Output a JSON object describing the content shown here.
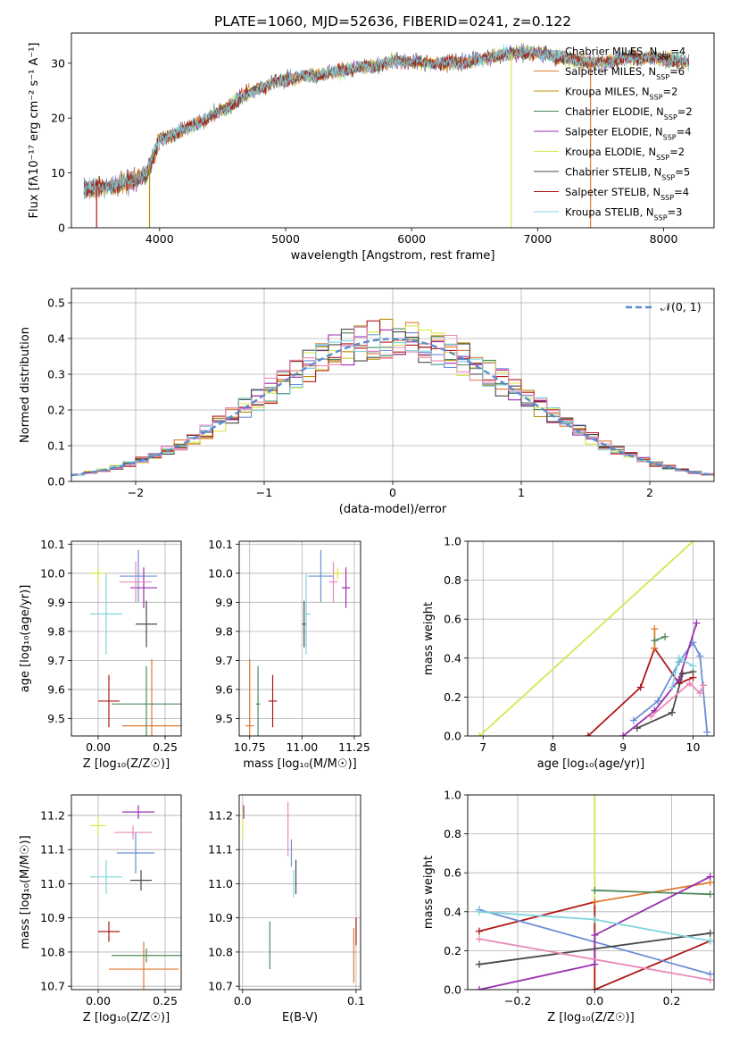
{
  "figure": {
    "title": "PLATE=1060, MJD=52636, FIBERID=0241, z=0.122"
  },
  "colors": {
    "Chabrier MILES": "#6a8fd6",
    "Salpeter MILES": "#e07a30",
    "Kroupa MILES": "#b8900a",
    "Chabrier ELODIE": "#4f8a5c",
    "Salpeter ELODIE": "#9a2fb0",
    "Kroupa ELODIE": "#d8e84a",
    "Chabrier STELIB": "#4a4a4a",
    "Salpeter STELIB": "#b01818",
    "Kroupa STELIB": "#80d4dc",
    "pink": "#e98ab8",
    "lime": "#c8ec50",
    "normal": "#5b8bd0"
  },
  "chart_data": [
    {
      "id": "spectrum",
      "type": "line",
      "title": "PLATE=1060, MJD=52636, FIBERID=0241, z=0.122",
      "xlabel": "wavelength [Angstrom, rest frame]",
      "ylabel": "Flux [fλ10⁻¹⁷ erg cm⁻² s⁻¹ A⁻¹]",
      "xlim": [
        3300,
        8400
      ],
      "ylim": [
        0,
        35.5
      ],
      "xticks": [
        4000,
        5000,
        6000,
        7000,
        8000
      ],
      "yticks": [
        0,
        10,
        20,
        30
      ],
      "legend_position": "upper-right",
      "continuum": {
        "x": [
          3400,
          3600,
          3800,
          3900,
          4000,
          4150,
          4300,
          4500,
          4700,
          4900,
          5100,
          5300,
          5500,
          5700,
          5900,
          6100,
          6300,
          6500,
          6700,
          6900,
          7100,
          7300,
          7500,
          7700,
          7900,
          8100,
          8200
        ],
        "y": [
          7.0,
          7.5,
          8.5,
          10.0,
          16.0,
          17.5,
          19.0,
          21.5,
          24.5,
          26.5,
          27.5,
          28.0,
          29.0,
          29.5,
          30.5,
          30.0,
          30.0,
          30.5,
          31.5,
          32.0,
          31.5,
          30.5,
          30.0,
          31.0,
          31.0,
          30.5,
          30.0
        ]
      },
      "series": [
        {
          "name": "Chabrier MILES, N_SSP=4",
          "label": "Chabrier MILES, N",
          "sub": "SSP",
          "suffix": "=4",
          "color": "#6a8fd6"
        },
        {
          "name": "Salpeter MILES, N_SSP=6",
          "label": "Salpeter MILES, N",
          "sub": "SSP",
          "suffix": "=6",
          "color": "#e07a30"
        },
        {
          "name": "Kroupa MILES, N_SSP=2",
          "label": "Kroupa MILES, N",
          "sub": "SSP",
          "suffix": "=2",
          "color": "#b8900a"
        },
        {
          "name": "Chabrier ELODIE, N_SSP=2",
          "label": "Chabrier ELODIE, N",
          "sub": "SSP",
          "suffix": "=2",
          "color": "#4f8a5c"
        },
        {
          "name": "Salpeter ELODIE, N_SSP=4",
          "label": "Salpeter ELODIE, N",
          "sub": "SSP",
          "suffix": "=4",
          "color": "#9a2fb0"
        },
        {
          "name": "Kroupa ELODIE, N_SSP=2",
          "label": "Kroupa ELODIE, N",
          "sub": "SSP",
          "suffix": "=2",
          "color": "#d8e84a"
        },
        {
          "name": "Chabrier STELIB, N_SSP=5",
          "label": "Chabrier STELIB, N",
          "sub": "SSP",
          "suffix": "=5",
          "color": "#4a4a4a"
        },
        {
          "name": "Salpeter STELIB, N_SSP=4",
          "label": "Salpeter STELIB, N",
          "sub": "SSP",
          "suffix": "=4",
          "color": "#b01818"
        },
        {
          "name": "Kroupa STELIB, N_SSP=3",
          "label": "Kroupa STELIB, N",
          "sub": "SSP",
          "suffix": "=3",
          "color": "#80d4dc"
        }
      ],
      "drops": [
        {
          "x": 3500,
          "color": "#b01818"
        },
        {
          "x": 3920,
          "color": "#b8900a"
        },
        {
          "x": 6790,
          "color": "#d8e84a"
        },
        {
          "x": 7420,
          "color": "#e07a30"
        }
      ]
    },
    {
      "id": "residuals",
      "type": "step",
      "xlabel": "(data-model)/error",
      "ylabel": "Normed distribution",
      "xlim": [
        -2.5,
        2.5
      ],
      "ylim": [
        0,
        0.54
      ],
      "xticks": [
        -2,
        -1,
        0,
        1,
        2
      ],
      "yticks": [
        0.0,
        0.1,
        0.2,
        0.3,
        0.4,
        0.5
      ],
      "bin_width": 0.1,
      "legend": {
        "label": "𝒩(0, 1)",
        "color": "#5b8bd0",
        "position": "upper-right"
      },
      "histogram_colors": [
        "#6a8fd6",
        "#e07a30",
        "#b8900a",
        "#4f8a5c",
        "#9a2fb0",
        "#d8e84a",
        "#4a4a4a",
        "#b01818",
        "#80d4dc",
        "#e98ab8"
      ]
    },
    {
      "id": "age-vs-Z",
      "type": "errorbar",
      "xlabel": "Z [log₁₀(Z/Z☉)]",
      "ylabel": "age  [log₁₀(age/yr)]",
      "xlim": [
        -0.1,
        0.31
      ],
      "ylim": [
        9.44,
        10.11
      ],
      "xticks": [
        0.0,
        0.25
      ],
      "yticks": [
        9.5,
        9.6,
        9.7,
        9.8,
        9.9,
        10.0,
        10.1
      ],
      "points": [
        {
          "x": 0.15,
          "y": 9.99,
          "xerr": 0.07,
          "yerr": 0.09,
          "color": "#6a8fd6"
        },
        {
          "x": 0.2,
          "y": 9.475,
          "xerr": 0.11,
          "yerr": 0.23,
          "color": "#e07a30"
        },
        {
          "x": 0.0,
          "y": 10.0,
          "xerr": 0.03,
          "yerr": 0.02,
          "color": "#d8e84a"
        },
        {
          "x": 0.18,
          "y": 9.55,
          "xerr": 0.13,
          "yerr": 0.13,
          "color": "#4f8a5c"
        },
        {
          "x": 0.17,
          "y": 9.95,
          "xerr": 0.05,
          "yerr": 0.07,
          "color": "#9a2fb0"
        },
        {
          "x": 0.14,
          "y": 9.97,
          "xerr": 0.06,
          "yerr": 0.07,
          "color": "#e98ab8"
        },
        {
          "x": 0.18,
          "y": 9.825,
          "xerr": 0.04,
          "yerr": 0.08,
          "color": "#4a4a4a"
        },
        {
          "x": 0.04,
          "y": 9.56,
          "xerr": 0.04,
          "yerr": 0.09,
          "color": "#b01818"
        },
        {
          "x": 0.03,
          "y": 9.86,
          "xerr": 0.06,
          "yerr": 0.14,
          "color": "#80d4dc"
        },
        {
          "x": 0.0,
          "y": 9.99,
          "xerr": 0.0,
          "yerr": 0.03,
          "color": "#c8ec50"
        }
      ]
    },
    {
      "id": "age-vs-mass",
      "type": "errorbar",
      "xlabel": "mass [log₁₀(M/M☉)]",
      "ylabel": "",
      "xlim": [
        10.7,
        11.28
      ],
      "ylim": [
        9.44,
        10.11
      ],
      "xticks": [
        10.75,
        11.0,
        11.25
      ],
      "yticks": [
        9.5,
        9.6,
        9.7,
        9.8,
        9.9,
        10.0,
        10.1
      ],
      "points": [
        {
          "x": 11.09,
          "y": 9.99,
          "xerr": 0.06,
          "yerr": 0.09,
          "color": "#6a8fd6"
        },
        {
          "x": 10.75,
          "y": 9.475,
          "xerr": 0.02,
          "yerr": 0.23,
          "color": "#e07a30"
        },
        {
          "x": 11.17,
          "y": 10.0,
          "xerr": 0.03,
          "yerr": 0.02,
          "color": "#d8e84a"
        },
        {
          "x": 10.79,
          "y": 9.55,
          "xerr": 0.01,
          "yerr": 0.13,
          "color": "#4f8a5c"
        },
        {
          "x": 11.21,
          "y": 9.95,
          "xerr": 0.02,
          "yerr": 0.07,
          "color": "#9a2fb0"
        },
        {
          "x": 11.15,
          "y": 9.97,
          "xerr": 0.02,
          "yerr": 0.07,
          "color": "#e98ab8"
        },
        {
          "x": 11.01,
          "y": 9.825,
          "xerr": 0.01,
          "yerr": 0.08,
          "color": "#4a4a4a"
        },
        {
          "x": 10.86,
          "y": 9.56,
          "xerr": 0.02,
          "yerr": 0.09,
          "color": "#b01818"
        },
        {
          "x": 11.02,
          "y": 9.86,
          "xerr": 0.02,
          "yerr": 0.14,
          "color": "#80d4dc"
        }
      ]
    },
    {
      "id": "mass-weight-vs-age",
      "type": "line",
      "xlabel": "age  [log₁₀(age/yr)]",
      "ylabel": "mass weight",
      "xlim": [
        6.78,
        10.3
      ],
      "ylim": [
        0,
        1.0
      ],
      "xticks": [
        7,
        8,
        9,
        10
      ],
      "yticks": [
        0.0,
        0.2,
        0.4,
        0.6,
        0.8,
        1.0
      ],
      "series": [
        {
          "color": "#c8ec50",
          "x": [
            6.95,
            10.0
          ],
          "y": [
            0.0,
            1.0
          ]
        },
        {
          "color": "#b01818",
          "x": [
            8.5,
            9.25,
            9.45,
            9.8,
            10.0
          ],
          "y": [
            0.0,
            0.25,
            0.45,
            0.27,
            0.3
          ]
        },
        {
          "color": "#6a8fd6",
          "x": [
            9.15,
            9.5,
            9.8,
            10.0,
            10.1,
            10.2
          ],
          "y": [
            0.08,
            0.18,
            0.38,
            0.48,
            0.41,
            0.02
          ]
        },
        {
          "color": "#9a2fb0",
          "x": [
            9.0,
            9.45,
            9.8,
            10.05
          ],
          "y": [
            0.0,
            0.13,
            0.29,
            0.58
          ]
        },
        {
          "color": "#e07a30",
          "x": [
            9.45,
            9.45
          ],
          "y": [
            0.45,
            0.55
          ]
        },
        {
          "color": "#4f8a5c",
          "x": [
            9.45,
            9.6
          ],
          "y": [
            0.49,
            0.51
          ]
        },
        {
          "color": "#4a4a4a",
          "x": [
            9.2,
            9.7,
            9.85,
            10.0
          ],
          "y": [
            0.04,
            0.12,
            0.32,
            0.33
          ]
        },
        {
          "color": "#80d4dc",
          "x": [
            9.7,
            9.8,
            10.0
          ],
          "y": [
            0.25,
            0.4,
            0.36
          ]
        },
        {
          "color": "#e98ab8",
          "x": [
            9.4,
            9.95,
            10.1,
            10.15
          ],
          "y": [
            0.1,
            0.27,
            0.22,
            0.26
          ]
        }
      ]
    },
    {
      "id": "mass-vs-Z",
      "type": "errorbar",
      "xlabel": "Z [log₁₀(Z/Z☉)]",
      "ylabel": "mass [log₁₀(M/M☉)]",
      "xlim": [
        -0.1,
        0.31
      ],
      "ylim": [
        10.69,
        11.26
      ],
      "xticks": [
        0.0,
        0.25
      ],
      "yticks": [
        10.7,
        10.8,
        10.9,
        11.0,
        11.1,
        11.2
      ],
      "points": [
        {
          "x": 0.14,
          "y": 11.09,
          "xerr": 0.07,
          "yerr": 0.06,
          "color": "#6a8fd6"
        },
        {
          "x": 0.17,
          "y": 10.75,
          "xerr": 0.13,
          "yerr": 0.08,
          "color": "#e07a30"
        },
        {
          "x": 0.0,
          "y": 11.17,
          "xerr": 0.03,
          "yerr": 0.03,
          "color": "#d8e84a"
        },
        {
          "x": 0.18,
          "y": 10.79,
          "xerr": 0.13,
          "yerr": 0.02,
          "color": "#4f8a5c"
        },
        {
          "x": 0.15,
          "y": 11.21,
          "xerr": 0.06,
          "yerr": 0.02,
          "color": "#9a2fb0"
        },
        {
          "x": 0.13,
          "y": 11.15,
          "xerr": 0.07,
          "yerr": 0.02,
          "color": "#e98ab8"
        },
        {
          "x": 0.16,
          "y": 11.01,
          "xerr": 0.04,
          "yerr": 0.03,
          "color": "#4a4a4a"
        },
        {
          "x": 0.04,
          "y": 10.86,
          "xerr": 0.04,
          "yerr": 0.03,
          "color": "#b01818"
        },
        {
          "x": 0.03,
          "y": 11.02,
          "xerr": 0.06,
          "yerr": 0.05,
          "color": "#80d4dc"
        }
      ]
    },
    {
      "id": "mass-vs-ebv",
      "type": "errorbar",
      "xlabel": "E(B-V)",
      "ylabel": "",
      "xlim": [
        -0.003,
        0.104
      ],
      "ylim": [
        10.69,
        11.26
      ],
      "xticks": [
        0.0,
        0.1
      ],
      "yticks": [
        10.7,
        10.8,
        10.9,
        11.0,
        11.1,
        11.2
      ],
      "points": [
        {
          "x": 0.043,
          "y": 11.09,
          "xerr": 0.0,
          "yerr": 0.04,
          "color": "#6a8fd6"
        },
        {
          "x": 0.098,
          "y": 10.79,
          "xerr": 0.0,
          "yerr": 0.08,
          "color": "#e07a30"
        },
        {
          "x": 0.0,
          "y": 11.18,
          "xerr": 0.0,
          "yerr": 0.05,
          "color": "#d8e84a"
        },
        {
          "x": 0.024,
          "y": 10.82,
          "xerr": 0.0,
          "yerr": 0.07,
          "color": "#4f8a5c"
        },
        {
          "x": 0.001,
          "y": 11.21,
          "xerr": 0.0,
          "yerr": 0.02,
          "color": "#9a2fb0"
        },
        {
          "x": 0.04,
          "y": 11.16,
          "xerr": 0.0,
          "yerr": 0.08,
          "color": "#e98ab8"
        },
        {
          "x": 0.047,
          "y": 11.02,
          "xerr": 0.0,
          "yerr": 0.05,
          "color": "#4a4a4a"
        },
        {
          "x": 0.1,
          "y": 10.86,
          "xerr": 0.0,
          "yerr": 0.04,
          "color": "#b01818"
        },
        {
          "x": 0.045,
          "y": 11.0,
          "xerr": 0.0,
          "yerr": 0.04,
          "color": "#80d4dc"
        }
      ]
    },
    {
      "id": "mass-weight-vs-Z",
      "type": "line",
      "xlabel": "Z [log₁₀(Z/Z☉)]",
      "ylabel": "mass weight",
      "xlim": [
        -0.33,
        0.31
      ],
      "ylim": [
        0,
        1.0
      ],
      "xticks": [
        -0.2,
        0.0,
        0.2
      ],
      "yticks": [
        0.0,
        0.2,
        0.4,
        0.6,
        0.8,
        1.0
      ],
      "series": [
        {
          "color": "#c8ec50",
          "x": [
            0.0,
            0.0
          ],
          "y": [
            0.0,
            1.0
          ]
        },
        {
          "color": "#b01818",
          "x": [
            -0.3,
            0.0,
            0.0,
            0.3
          ],
          "y": [
            0.3,
            0.45,
            0.0,
            0.25
          ]
        },
        {
          "color": "#6a8fd6",
          "x": [
            -0.3,
            0.3
          ],
          "y": [
            0.41,
            0.08
          ]
        },
        {
          "color": "#e07a30",
          "x": [
            0.0,
            0.3
          ],
          "y": [
            0.45,
            0.55
          ]
        },
        {
          "color": "#4f8a5c",
          "x": [
            0.0,
            0.3
          ],
          "y": [
            0.51,
            0.49
          ]
        },
        {
          "color": "#9a2fb0",
          "x": [
            -0.3,
            0.0,
            0.0,
            0.3
          ],
          "y": [
            0.0,
            0.13,
            0.28,
            0.58
          ]
        },
        {
          "color": "#4a4a4a",
          "x": [
            -0.3,
            0.3
          ],
          "y": [
            0.13,
            0.29
          ]
        },
        {
          "color": "#80d4dc",
          "x": [
            -0.3,
            0.0,
            0.3
          ],
          "y": [
            0.4,
            0.36,
            0.25
          ]
        },
        {
          "color": "#e98ab8",
          "x": [
            -0.3,
            0.3
          ],
          "y": [
            0.26,
            0.05
          ]
        }
      ],
      "markers_x": [
        -0.3,
        0.0,
        0.3
      ]
    }
  ]
}
